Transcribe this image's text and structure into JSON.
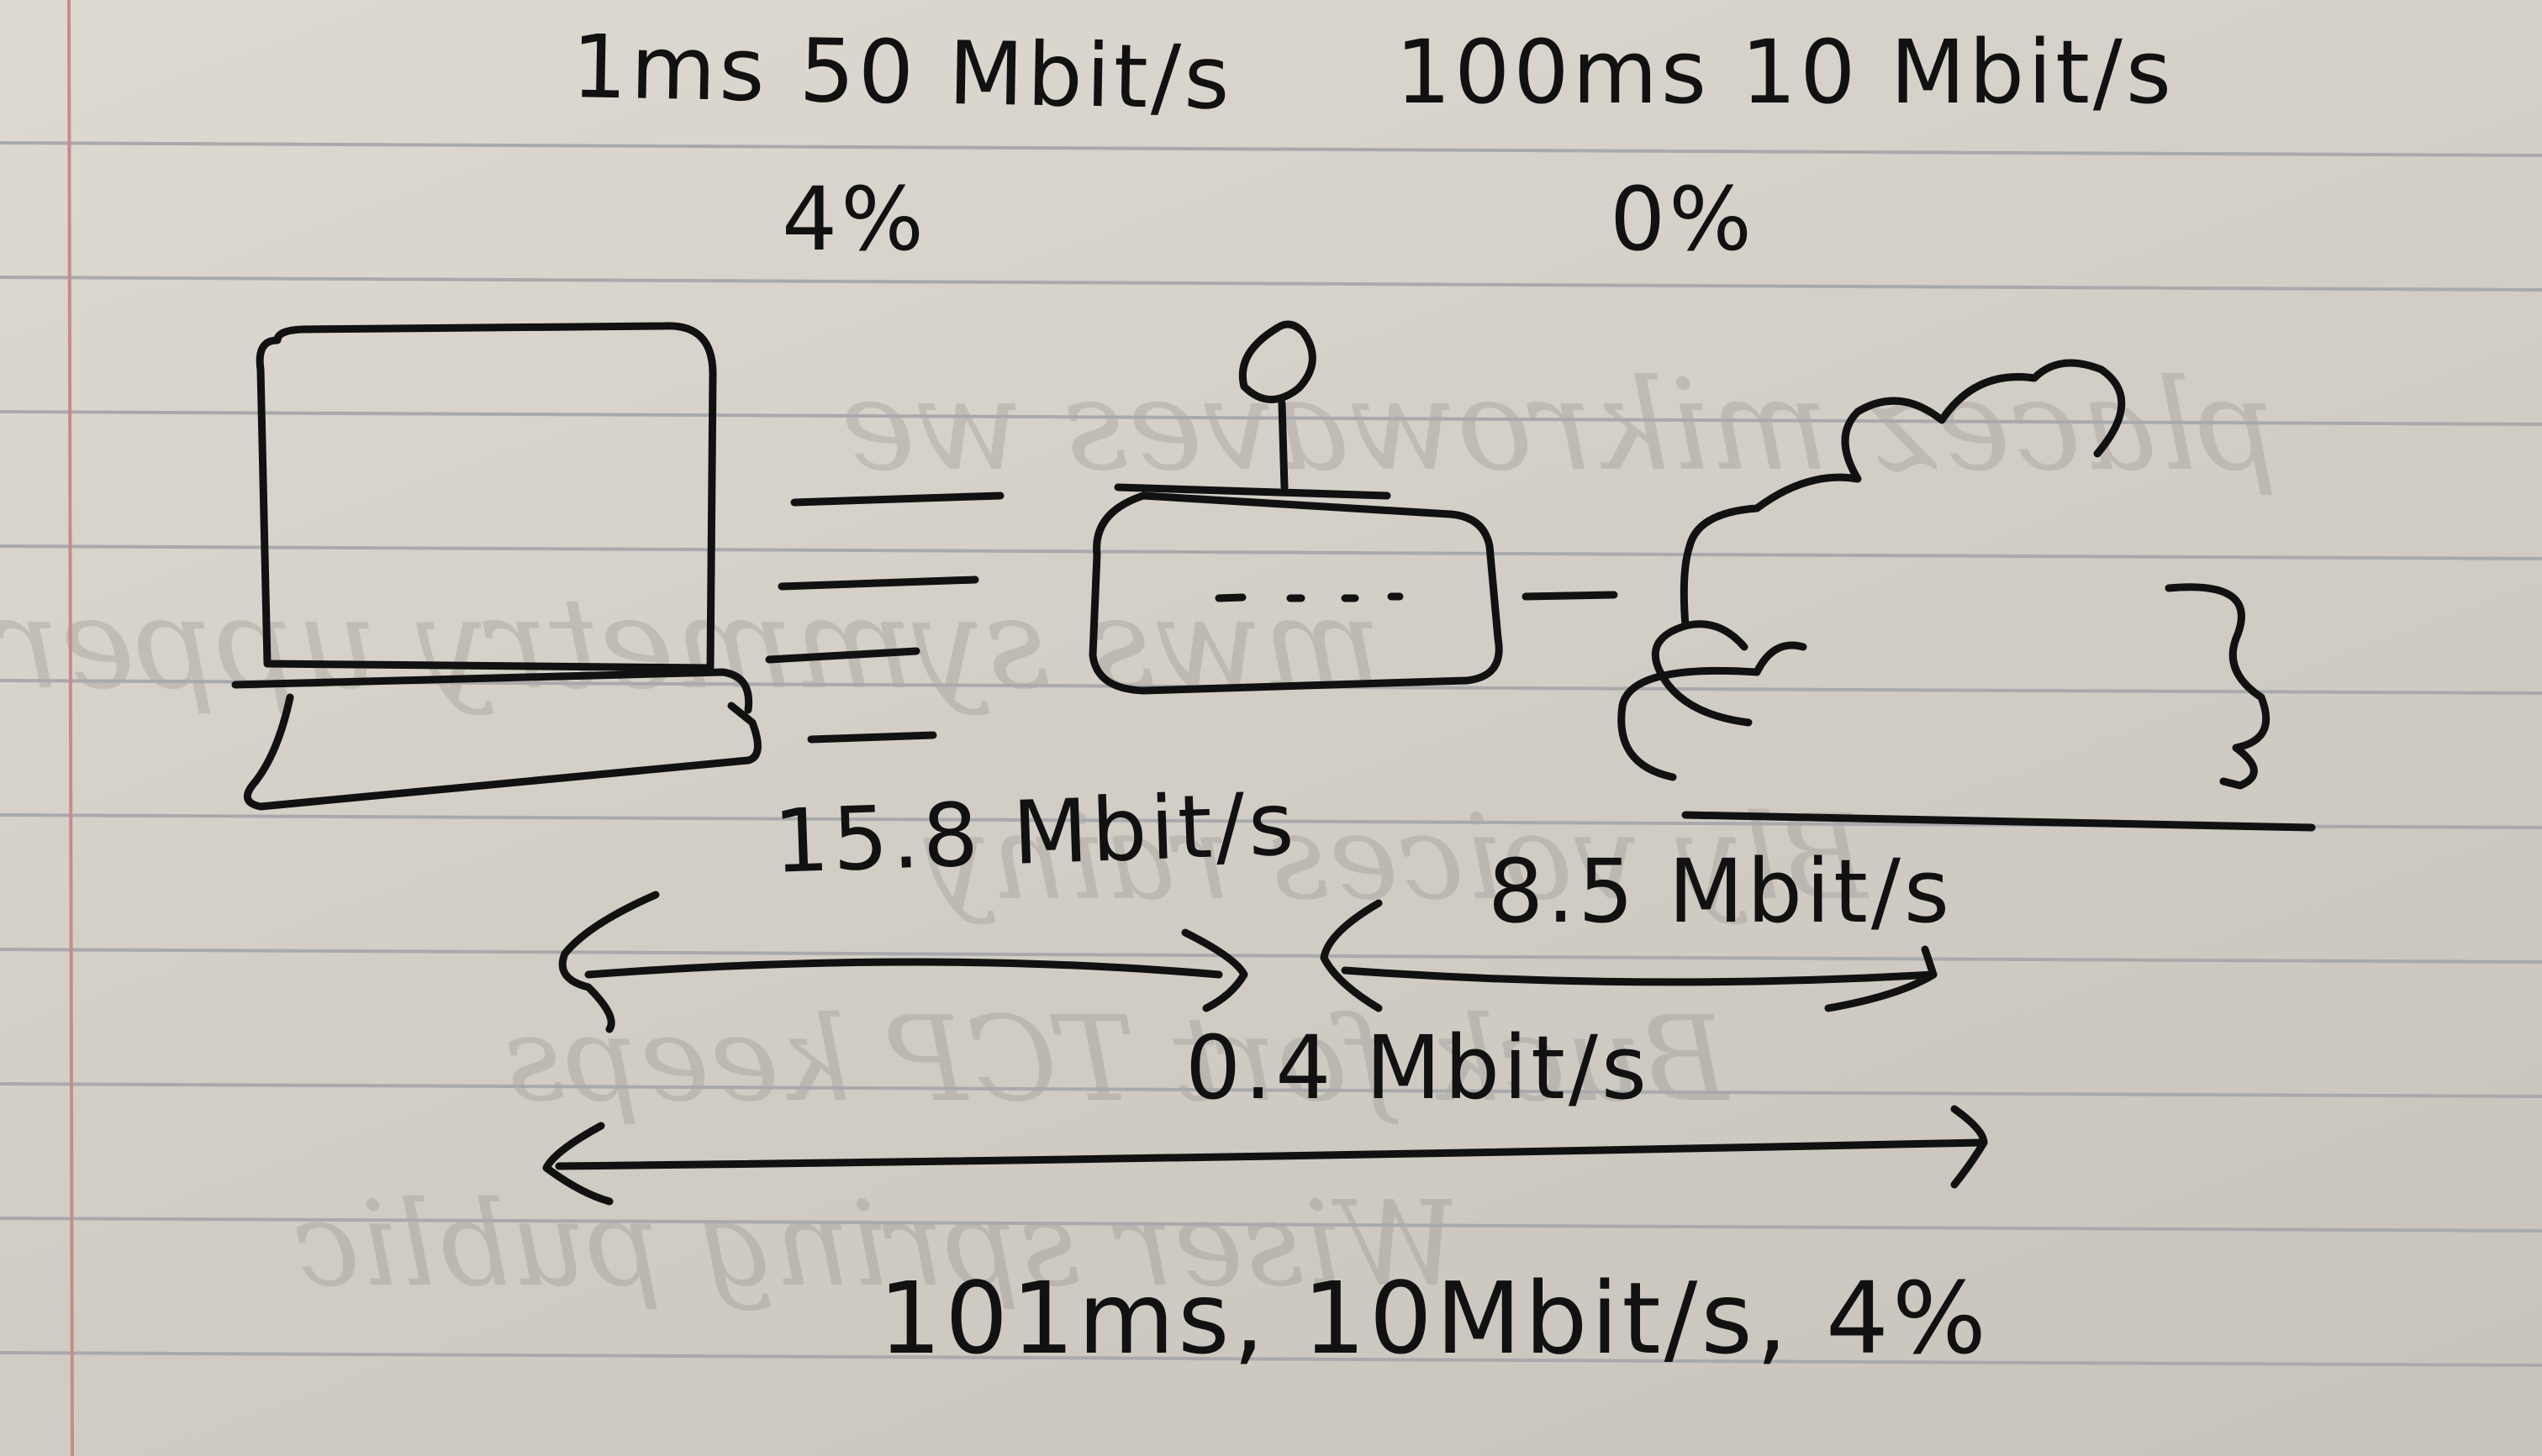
{
  "diagram": {
    "nodes": [
      {
        "id": "laptop",
        "icon": "laptop-icon"
      },
      {
        "id": "router",
        "icon": "router-icon"
      },
      {
        "id": "internet",
        "icon": "cloud-icon"
      }
    ],
    "links": {
      "laptop_router": {
        "latency_speed": "1ms 50 Mbit/s",
        "loss": "4%",
        "measured": "15.8 Mbit/s"
      },
      "router_internet": {
        "latency_speed": "100ms 10 Mbit/s",
        "loss": "0%",
        "measured": "8.5 Mbit/s"
      },
      "end_to_end": {
        "measured": "0.4 Mbit/s",
        "summary": "101ms, 10Mbit/s, 4%"
      }
    }
  },
  "background": {
    "bleed_text": [
      "placez mikrowaves we",
      "mws symmetry upper",
      "Bly voices rainy",
      "Buck fort TCP keeps",
      "Wiser spring public"
    ]
  },
  "colors": {
    "ink": "#111111",
    "paper": "#dcd8d0",
    "rule": "#a9a9ad",
    "margin": "#c98a8a"
  }
}
